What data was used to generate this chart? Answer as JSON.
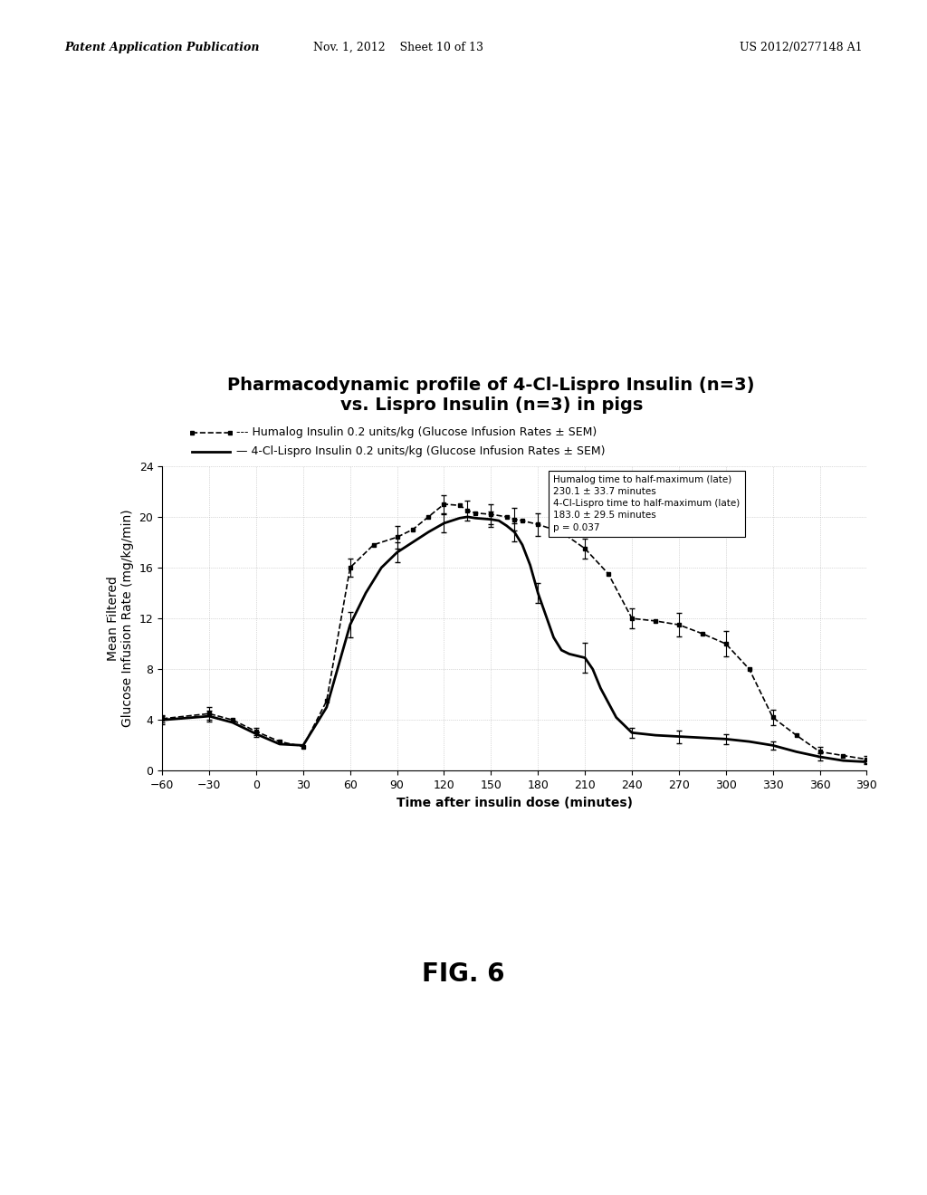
{
  "title_line1": "Pharmacodynamic profile of 4-Cl-Lispro Insulin (n=3)",
  "title_line2": "vs. Lispro Insulin (n=3) in pigs",
  "legend1": "--- Humalog Insulin 0.2 units/kg (Glucose Infusion Rates ± SEM)",
  "legend2": "— 4-Cl-Lispro Insulin 0.2 units/kg (Glucose Infusion Rates ± SEM)",
  "xlabel": "Time after insulin dose (minutes)",
  "ylabel": "Mean Filtered\nGlucose Infusion Rate (mg/kg/min)",
  "annotation_lines": [
    "Humalog time to half-maximum (late)",
    "230.1 ± 33.7 minutes",
    "4-Cl-Lispro time to half-maximum (late)",
    "183.0 ± 29.5 minutes",
    "p = 0.037"
  ],
  "xlim": [
    -60,
    390
  ],
  "ylim": [
    0,
    24
  ],
  "xticks": [
    -60,
    -30,
    0,
    30,
    60,
    90,
    120,
    150,
    180,
    210,
    240,
    270,
    300,
    330,
    360,
    390
  ],
  "yticks": [
    0,
    4,
    8,
    12,
    16,
    20,
    24
  ],
  "fig_label": "FIG. 6",
  "header_left": "Patent Application Publication",
  "header_center": "Nov. 1, 2012    Sheet 10 of 13",
  "header_right": "US 2012/0277148 A1",
  "background_color": "#ffffff",
  "grid_color": "#999999",
  "title_fontsize": 14,
  "axis_label_fontsize": 10,
  "tick_fontsize": 9,
  "legend_fontsize": 9,
  "annotation_fontsize": 7.5,
  "humalog_x": [
    -60,
    -30,
    -15,
    0,
    15,
    30,
    45,
    60,
    75,
    90,
    100,
    110,
    120,
    130,
    135,
    140,
    150,
    160,
    165,
    170,
    180,
    195,
    210,
    225,
    240,
    255,
    270,
    285,
    300,
    315,
    330,
    345,
    360,
    375,
    390
  ],
  "humalog_y": [
    4.1,
    4.5,
    4.0,
    3.1,
    2.3,
    1.9,
    5.5,
    16.0,
    17.8,
    18.4,
    19.0,
    20.0,
    21.0,
    20.9,
    20.5,
    20.3,
    20.2,
    20.0,
    19.8,
    19.7,
    19.4,
    18.8,
    17.5,
    15.5,
    12.0,
    11.8,
    11.5,
    10.8,
    10.0,
    8.0,
    4.2,
    2.8,
    1.5,
    1.2,
    0.9
  ],
  "humalog_err_x": [
    -60,
    -30,
    0,
    60,
    90,
    120,
    135,
    150,
    165,
    180,
    210,
    240,
    270,
    300,
    330,
    360,
    390
  ],
  "humalog_err_y": [
    4.1,
    4.5,
    3.1,
    16.0,
    18.4,
    21.0,
    20.5,
    20.2,
    19.8,
    19.4,
    17.5,
    12.0,
    11.5,
    10.0,
    4.2,
    1.5,
    0.9
  ],
  "humalog_err": [
    0.3,
    0.5,
    0.3,
    0.7,
    0.9,
    0.7,
    0.8,
    0.8,
    0.9,
    0.9,
    0.8,
    0.8,
    0.9,
    1.0,
    0.6,
    0.4,
    0.3
  ],
  "lispro_x": [
    -60,
    -30,
    -15,
    0,
    15,
    30,
    45,
    60,
    70,
    80,
    90,
    100,
    110,
    120,
    130,
    135,
    140,
    150,
    155,
    160,
    165,
    170,
    175,
    180,
    190,
    195,
    200,
    210,
    215,
    220,
    230,
    240,
    255,
    270,
    285,
    300,
    315,
    330,
    345,
    360,
    375,
    390
  ],
  "lispro_y": [
    4.0,
    4.3,
    3.8,
    2.9,
    2.1,
    2.0,
    5.0,
    11.5,
    14.0,
    16.0,
    17.2,
    18.0,
    18.8,
    19.5,
    19.9,
    20.0,
    19.9,
    19.8,
    19.7,
    19.3,
    18.8,
    17.8,
    16.2,
    14.0,
    10.5,
    9.5,
    9.2,
    8.9,
    8.0,
    6.5,
    4.2,
    3.0,
    2.8,
    2.7,
    2.6,
    2.5,
    2.3,
    2.0,
    1.5,
    1.1,
    0.8,
    0.7
  ],
  "lispro_err_x": [
    -60,
    -30,
    0,
    60,
    90,
    120,
    150,
    165,
    180,
    210,
    240,
    270,
    300,
    330,
    360,
    390
  ],
  "lispro_err_y": [
    4.0,
    4.3,
    2.9,
    11.5,
    17.2,
    19.5,
    19.8,
    18.8,
    14.0,
    8.9,
    3.0,
    2.7,
    2.5,
    2.0,
    1.1,
    0.7
  ],
  "lispro_err": [
    0.3,
    0.4,
    0.2,
    1.0,
    0.8,
    0.7,
    0.6,
    0.7,
    0.8,
    1.2,
    0.4,
    0.5,
    0.4,
    0.3,
    0.3,
    0.2
  ]
}
